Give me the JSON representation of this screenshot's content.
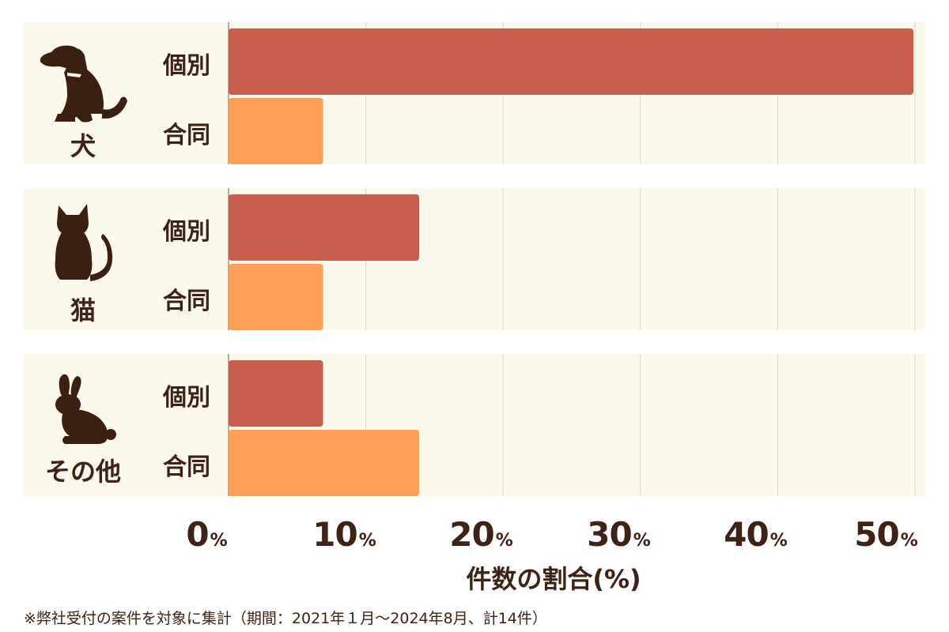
{
  "chart_data": {
    "type": "bar",
    "orientation": "horizontal",
    "groups": [
      {
        "label": "犬",
        "icon": "dog-icon",
        "bars": [
          {
            "label": "個別",
            "value": 50
          },
          {
            "label": "合同",
            "value": 7
          }
        ]
      },
      {
        "label": "猫",
        "icon": "cat-icon",
        "bars": [
          {
            "label": "個別",
            "value": 14
          },
          {
            "label": "合同",
            "value": 7
          }
        ]
      },
      {
        "label": "その他",
        "icon": "rabbit-icon",
        "bars": [
          {
            "label": "個別",
            "value": 7
          },
          {
            "label": "合同",
            "value": 14
          }
        ]
      }
    ],
    "xlabel": "件数の割合(%)",
    "xticks": [
      "0",
      "10",
      "20",
      "30",
      "40",
      "50"
    ],
    "xtick_unit": "%",
    "xlim": [
      0,
      50
    ],
    "grid": true,
    "colors": {
      "個別": "#c65d4e",
      "合同": "#fe9f55"
    }
  },
  "footnote": "※弊社受付の案件を対象に集計（期間：2021年１月～2024年8月、計14件）"
}
